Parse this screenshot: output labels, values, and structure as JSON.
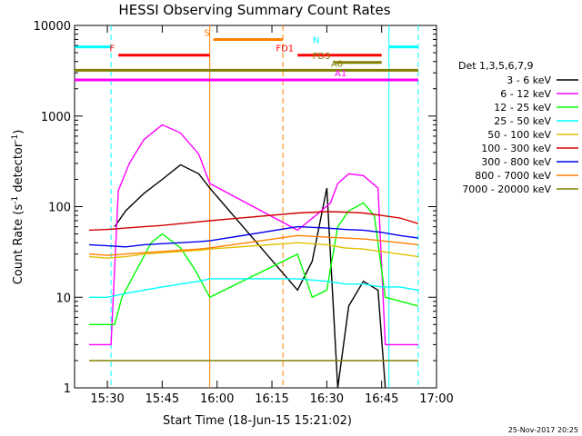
{
  "chart_data": {
    "type": "line",
    "title": "HESSI Observing Summary Count Rates",
    "xlabel": "Start Time (18-Jun-15 15:21:02)",
    "ylabel_main": "Count Rate (s",
    "ylabel_sup1": "-1",
    "ylabel_mid": " detector",
    "ylabel_sup2": "-1",
    "ylabel_end": ")",
    "y_scale": "log",
    "ylim": [
      1,
      10000
    ],
    "xlim": [
      "15:21:02",
      "17:00"
    ],
    "xticks": [
      "15:30",
      "15:45",
      "16:00",
      "16:15",
      "16:30",
      "16:45",
      "17:00"
    ],
    "yticks": [
      "1",
      "10",
      "100",
      "1000",
      "10000"
    ],
    "timestamp": "25-Nov-2017 20:25",
    "legend_title": "Det 1,3,5,6,7,9",
    "series": [
      {
        "name": "3 - 6 keV",
        "color": "#000000",
        "points": [
          [
            "15:32",
            60
          ],
          [
            "15:35",
            90
          ],
          [
            "15:40",
            140
          ],
          [
            "15:45",
            200
          ],
          [
            "15:50",
            290
          ],
          [
            "15:55",
            230
          ],
          [
            "15:58",
            160
          ],
          [
            "16:22",
            12
          ],
          [
            "16:26",
            25
          ],
          [
            "16:30",
            160
          ],
          [
            "16:33",
            1
          ],
          [
            "16:36",
            8
          ],
          [
            "16:40",
            15
          ],
          [
            "16:44",
            12
          ],
          [
            "16:46",
            1
          ]
        ]
      },
      {
        "name": "6 - 12 keV",
        "color": "#ff00ff",
        "points": [
          [
            "15:25",
            3
          ],
          [
            "15:31",
            3
          ],
          [
            "15:33",
            150
          ],
          [
            "15:36",
            300
          ],
          [
            "15:40",
            550
          ],
          [
            "15:45",
            800
          ],
          [
            "15:50",
            650
          ],
          [
            "15:55",
            380
          ],
          [
            "15:58",
            180
          ],
          [
            "16:22",
            55
          ],
          [
            "16:27",
            80
          ],
          [
            "16:31",
            110
          ],
          [
            "16:33",
            180
          ],
          [
            "16:36",
            230
          ],
          [
            "16:40",
            220
          ],
          [
            "16:44",
            160
          ],
          [
            "16:46",
            3
          ],
          [
            "16:55",
            3
          ]
        ]
      },
      {
        "name": "12 - 25 keV",
        "color": "#00ff00",
        "points": [
          [
            "15:25",
            5
          ],
          [
            "15:32",
            5
          ],
          [
            "15:34",
            10
          ],
          [
            "15:38",
            20
          ],
          [
            "15:42",
            40
          ],
          [
            "15:45",
            50
          ],
          [
            "15:50",
            35
          ],
          [
            "15:54",
            20
          ],
          [
            "15:58",
            10
          ],
          [
            "16:22",
            30
          ],
          [
            "16:26",
            10
          ],
          [
            "16:30",
            12
          ],
          [
            "16:33",
            60
          ],
          [
            "16:36",
            90
          ],
          [
            "16:40",
            110
          ],
          [
            "16:43",
            80
          ],
          [
            "16:46",
            10
          ],
          [
            "16:55",
            8
          ]
        ]
      },
      {
        "name": "25 - 50 keV",
        "color": "#00ffff",
        "points": [
          [
            "15:25",
            10
          ],
          [
            "15:30",
            10
          ],
          [
            "15:35",
            11
          ],
          [
            "15:40",
            12
          ],
          [
            "15:45",
            13
          ],
          [
            "15:50",
            14
          ],
          [
            "15:55",
            15
          ],
          [
            "15:58",
            16
          ],
          [
            "16:22",
            16
          ],
          [
            "16:30",
            15
          ],
          [
            "16:35",
            14
          ],
          [
            "16:40",
            14
          ],
          [
            "16:45",
            13
          ],
          [
            "16:50",
            13
          ],
          [
            "16:55",
            12
          ]
        ]
      },
      {
        "name": "50 - 100 keV",
        "color": "#e0c000",
        "points": [
          [
            "15:25",
            28
          ],
          [
            "15:30",
            27
          ],
          [
            "15:35",
            28
          ],
          [
            "15:40",
            30
          ],
          [
            "15:45",
            31
          ],
          [
            "15:50",
            32
          ],
          [
            "15:55",
            33
          ],
          [
            "15:58",
            34
          ],
          [
            "16:22",
            40
          ],
          [
            "16:30",
            38
          ],
          [
            "16:35",
            35
          ],
          [
            "16:40",
            34
          ],
          [
            "16:45",
            32
          ],
          [
            "16:50",
            30
          ],
          [
            "16:55",
            28
          ]
        ]
      },
      {
        "name": "100 - 300 keV",
        "color": "#d00000",
        "points": [
          [
            "15:25",
            55
          ],
          [
            "15:30",
            56
          ],
          [
            "15:35",
            58
          ],
          [
            "15:40",
            60
          ],
          [
            "15:45",
            62
          ],
          [
            "15:50",
            65
          ],
          [
            "15:55",
            68
          ],
          [
            "15:58",
            70
          ],
          [
            "16:22",
            85
          ],
          [
            "16:30",
            88
          ],
          [
            "16:35",
            87
          ],
          [
            "16:40",
            85
          ],
          [
            "16:45",
            80
          ],
          [
            "16:50",
            75
          ],
          [
            "16:55",
            65
          ]
        ]
      },
      {
        "name": "300 - 800 keV",
        "color": "#0000ee",
        "points": [
          [
            "15:25",
            38
          ],
          [
            "15:30",
            37
          ],
          [
            "15:35",
            36
          ],
          [
            "15:40",
            38
          ],
          [
            "15:45",
            39
          ],
          [
            "15:50",
            40
          ],
          [
            "15:55",
            41
          ],
          [
            "15:58",
            42
          ],
          [
            "16:22",
            60
          ],
          [
            "16:30",
            58
          ],
          [
            "16:35",
            56
          ],
          [
            "16:40",
            55
          ],
          [
            "16:45",
            52
          ],
          [
            "16:50",
            48
          ],
          [
            "16:55",
            45
          ]
        ]
      },
      {
        "name": "800 - 7000 keV",
        "color": "#ff8000",
        "points": [
          [
            "15:25",
            30
          ],
          [
            "15:30",
            29
          ],
          [
            "15:35",
            30
          ],
          [
            "15:40",
            31
          ],
          [
            "15:45",
            32
          ],
          [
            "15:50",
            33
          ],
          [
            "15:55",
            34
          ],
          [
            "15:58",
            35
          ],
          [
            "16:22",
            48
          ],
          [
            "16:30",
            46
          ],
          [
            "16:35",
            45
          ],
          [
            "16:40",
            44
          ],
          [
            "16:45",
            42
          ],
          [
            "16:50",
            40
          ],
          [
            "16:55",
            38
          ]
        ]
      },
      {
        "name": "7000 - 20000 keV",
        "color": "#808000",
        "points": [
          [
            "15:25",
            2
          ],
          [
            "15:30",
            2
          ],
          [
            "15:35",
            2
          ],
          [
            "15:40",
            2
          ],
          [
            "15:45",
            2
          ],
          [
            "15:50",
            2
          ],
          [
            "15:55",
            2
          ],
          [
            "15:58",
            2
          ],
          [
            "16:22",
            2
          ],
          [
            "16:30",
            2
          ],
          [
            "16:35",
            2
          ],
          [
            "16:40",
            2
          ],
          [
            "16:45",
            2
          ],
          [
            "16:50",
            2
          ],
          [
            "16:55",
            2
          ]
        ]
      }
    ],
    "flags": [
      {
        "label": "N",
        "color": "#00ffff",
        "segments": [
          [
            "15:21:02",
            "15:31"
          ],
          [
            "16:47",
            "16:55"
          ]
        ],
        "level": 5800
      },
      {
        "label": "F",
        "color": "#ff0000",
        "segments": [
          [
            "15:33",
            "15:58"
          ]
        ],
        "level": 4700
      },
      {
        "label": "S",
        "color": "#ff8000",
        "segments": [
          [
            "15:59",
            "16:18"
          ]
        ],
        "level": 7000
      },
      {
        "label": "FD1",
        "color": "#ff0000",
        "segments": [
          [
            "16:22",
            "16:45"
          ]
        ],
        "level": 4700
      },
      {
        "label": "FD3",
        "color": "#808000",
        "segments": [
          [
            "16:32",
            "16:45"
          ]
        ],
        "level": 3900
      },
      {
        "label": "A0",
        "color": "#808000",
        "segments": [
          [
            "15:21:02",
            "16:55"
          ]
        ],
        "level": 3200
      },
      {
        "label": "A1",
        "color": "#ff00ff",
        "segments": [
          [
            "15:21:02",
            "16:55"
          ]
        ],
        "level": 2500
      }
    ],
    "vlines": [
      {
        "time": "15:31",
        "color": "#00ffff",
        "style": "dashed"
      },
      {
        "time": "15:58",
        "color": "#ff8000",
        "style": "solid"
      },
      {
        "time": "16:18",
        "color": "#ff8000",
        "style": "dashed"
      },
      {
        "time": "16:47",
        "color": "#00ffff",
        "style": "solid"
      },
      {
        "time": "16:55",
        "color": "#00ffff",
        "style": "dashed"
      }
    ]
  }
}
